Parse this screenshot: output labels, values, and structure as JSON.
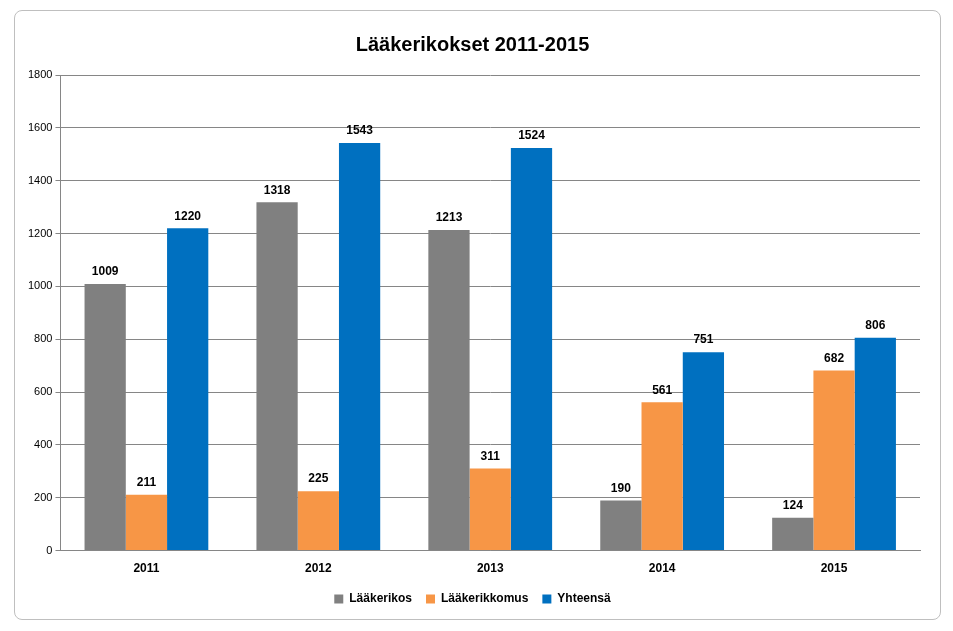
{
  "chart_data": {
    "type": "bar",
    "title": "Lääkerikokset 2011-2015",
    "categories": [
      "2011",
      "2012",
      "2013",
      "2014",
      "2015"
    ],
    "series": [
      {
        "name": "Lääkerikos",
        "color": "#808080",
        "values": [
          1009,
          1318,
          1213,
          190,
          124
        ]
      },
      {
        "name": "Lääkerikkomus",
        "color": "#f79646",
        "values": [
          211,
          225,
          311,
          561,
          682
        ]
      },
      {
        "name": "Yhteensä",
        "color": "#0070c0",
        "values": [
          1220,
          1543,
          1524,
          751,
          806
        ]
      }
    ],
    "ylim": [
      0,
      1800
    ],
    "yticks": [
      0,
      200,
      400,
      600,
      800,
      1000,
      1200,
      1400,
      1600,
      1800
    ],
    "grid": true,
    "legend": "bottom",
    "data_labels": true
  }
}
